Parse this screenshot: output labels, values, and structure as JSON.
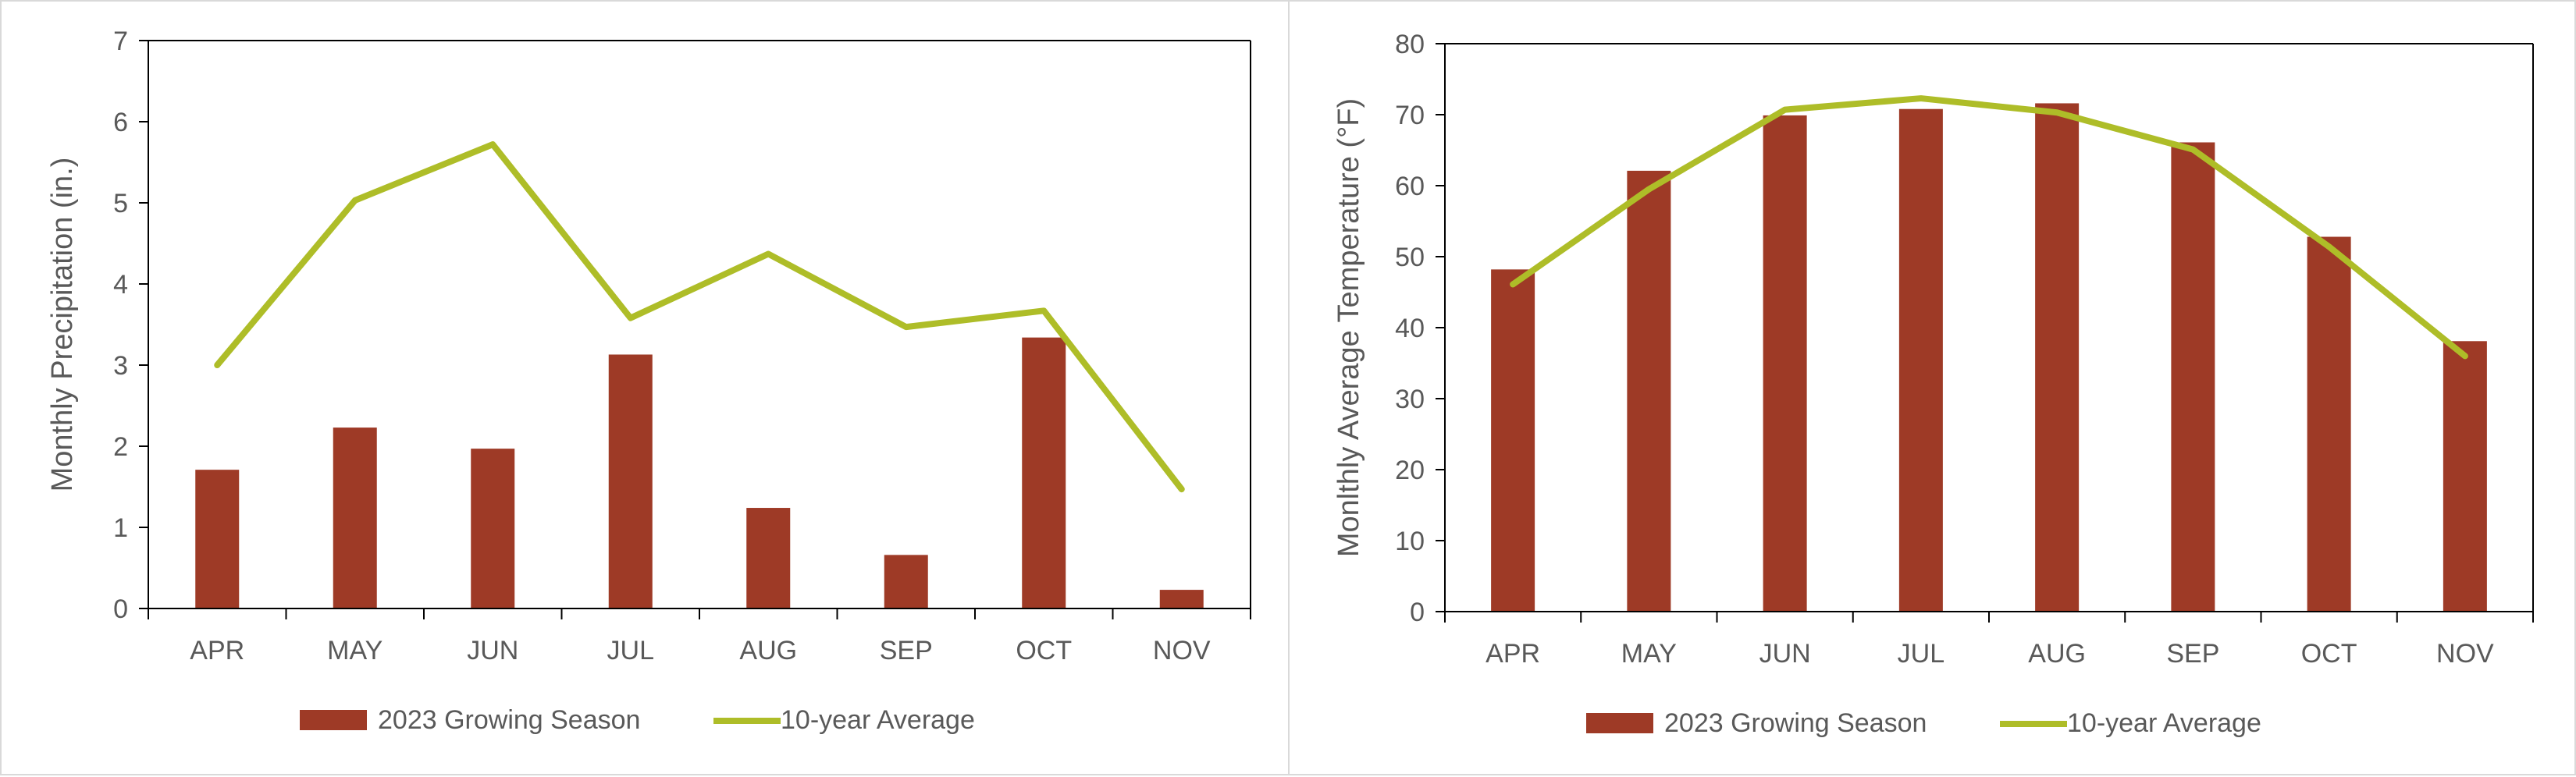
{
  "colors": {
    "bar": "#9e3a26",
    "line": "#aebd28",
    "axis": "#000000",
    "text": "#595959",
    "border": "#d9d9d9"
  },
  "chart_data": [
    {
      "type": "bar",
      "categories": [
        "APR",
        "MAY",
        "JUN",
        "JUL",
        "AUG",
        "SEP",
        "OCT",
        "NOV"
      ],
      "series": [
        {
          "name": "2023 Growing Season",
          "type": "bar",
          "values": [
            1.71,
            2.23,
            1.97,
            3.13,
            1.24,
            0.66,
            3.34,
            0.23
          ]
        },
        {
          "name": "10-year Average",
          "type": "line",
          "values": [
            3.0,
            5.03,
            5.72,
            3.58,
            4.37,
            3.47,
            3.67,
            1.47
          ]
        }
      ],
      "title": "",
      "xlabel": "",
      "ylabel": "Monthly Precipitation (in.)",
      "ylim": [
        0,
        7
      ],
      "yticks": [
        0,
        1,
        2,
        3,
        4,
        5,
        6,
        7
      ],
      "grid": false,
      "legend": "bottom"
    },
    {
      "type": "bar",
      "categories": [
        "APR",
        "MAY",
        "JUN",
        "JUL",
        "AUG",
        "SEP",
        "OCT",
        "NOV"
      ],
      "series": [
        {
          "name": "2023 Growing Season",
          "type": "bar",
          "values": [
            48.2,
            62.1,
            69.9,
            70.8,
            71.6,
            66.1,
            52.8,
            38.1
          ]
        },
        {
          "name": "10-year Average",
          "type": "line",
          "values": [
            46.1,
            59.5,
            70.7,
            72.3,
            70.3,
            65.1,
            51.4,
            36.0
          ]
        }
      ],
      "title": "",
      "xlabel": "",
      "ylabel": "Monlthly Average Temperature (°F)",
      "ylim": [
        0,
        80
      ],
      "yticks": [
        0,
        10,
        20,
        30,
        40,
        50,
        60,
        70,
        80
      ],
      "grid": false,
      "legend": "bottom"
    }
  ]
}
